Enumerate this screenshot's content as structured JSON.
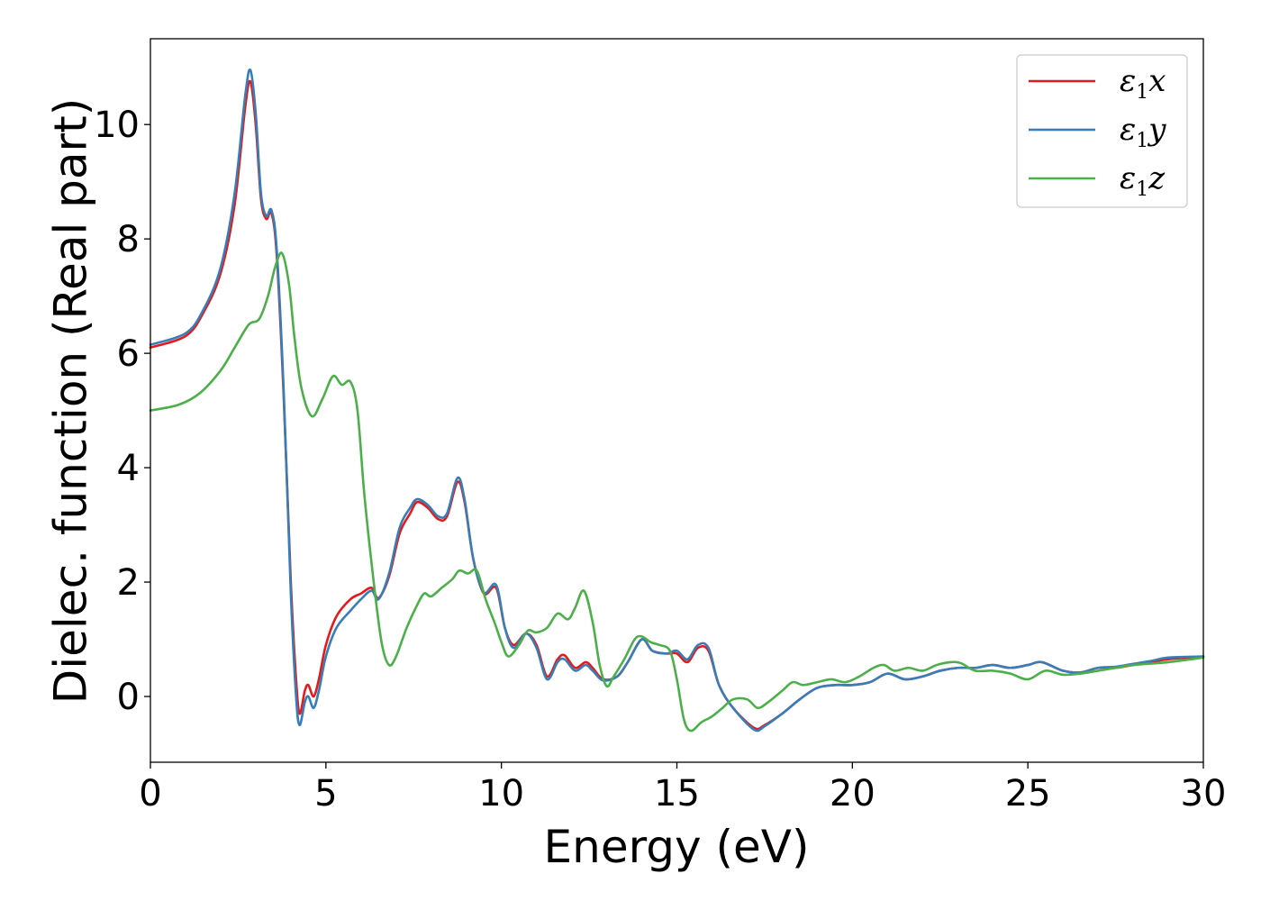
{
  "chart_data": {
    "type": "line",
    "xlabel": "Energy (eV)",
    "ylabel": "Dielec. function (Real part)",
    "xlim": [
      0,
      30
    ],
    "ylim": [
      -1.15,
      11.5
    ],
    "xticks": [
      0,
      5,
      10,
      15,
      20,
      25,
      30
    ],
    "yticks": [
      0,
      2,
      4,
      6,
      8,
      10
    ],
    "grid": false,
    "legend_position": "top-right",
    "series": [
      {
        "name": "ε1x",
        "legend": {
          "base": "ε",
          "sub": "1",
          "comp": "x"
        },
        "color": "#e41a1c",
        "points": [
          [
            0,
            6.1
          ],
          [
            1,
            6.3
          ],
          [
            1.5,
            6.7
          ],
          [
            2,
            7.4
          ],
          [
            2.4,
            8.6
          ],
          [
            2.7,
            10.3
          ],
          [
            2.85,
            10.75
          ],
          [
            3.0,
            10.0
          ],
          [
            3.15,
            8.7
          ],
          [
            3.3,
            8.35
          ],
          [
            3.45,
            8.45
          ],
          [
            3.6,
            7.7
          ],
          [
            3.8,
            5.2
          ],
          [
            4.0,
            2.0
          ],
          [
            4.15,
            0.3
          ],
          [
            4.25,
            -0.3
          ],
          [
            4.4,
            0.1
          ],
          [
            4.5,
            0.2
          ],
          [
            4.65,
            0.0
          ],
          [
            4.8,
            0.3
          ],
          [
            5.0,
            0.9
          ],
          [
            5.3,
            1.4
          ],
          [
            5.7,
            1.7
          ],
          [
            6.0,
            1.8
          ],
          [
            6.3,
            1.9
          ],
          [
            6.5,
            1.72
          ],
          [
            6.8,
            2.1
          ],
          [
            7.1,
            2.85
          ],
          [
            7.4,
            3.2
          ],
          [
            7.6,
            3.4
          ],
          [
            7.9,
            3.3
          ],
          [
            8.2,
            3.1
          ],
          [
            8.45,
            3.15
          ],
          [
            8.75,
            3.75
          ],
          [
            8.95,
            3.4
          ],
          [
            9.2,
            2.4
          ],
          [
            9.5,
            1.8
          ],
          [
            9.85,
            1.9
          ],
          [
            10.1,
            1.2
          ],
          [
            10.35,
            0.9
          ],
          [
            10.7,
            1.1
          ],
          [
            11.0,
            0.9
          ],
          [
            11.3,
            0.35
          ],
          [
            11.6,
            0.65
          ],
          [
            11.8,
            0.72
          ],
          [
            12.1,
            0.5
          ],
          [
            12.4,
            0.6
          ],
          [
            12.6,
            0.5
          ],
          [
            12.9,
            0.3
          ],
          [
            13.3,
            0.35
          ],
          [
            13.6,
            0.6
          ],
          [
            14.0,
            1.0
          ],
          [
            14.3,
            0.8
          ],
          [
            14.7,
            0.75
          ],
          [
            15.0,
            0.75
          ],
          [
            15.3,
            0.6
          ],
          [
            15.6,
            0.85
          ],
          [
            15.9,
            0.8
          ],
          [
            16.2,
            0.2
          ],
          [
            16.6,
            -0.2
          ],
          [
            17.2,
            -0.55
          ],
          [
            17.5,
            -0.5
          ],
          [
            18.0,
            -0.3
          ],
          [
            18.5,
            -0.05
          ],
          [
            19.0,
            0.15
          ],
          [
            19.5,
            0.2
          ],
          [
            20.0,
            0.2
          ],
          [
            20.5,
            0.25
          ],
          [
            21.0,
            0.4
          ],
          [
            21.5,
            0.3
          ],
          [
            22.0,
            0.35
          ],
          [
            22.5,
            0.45
          ],
          [
            23.0,
            0.5
          ],
          [
            23.5,
            0.5
          ],
          [
            24.0,
            0.55
          ],
          [
            24.5,
            0.5
          ],
          [
            25.0,
            0.55
          ],
          [
            25.4,
            0.6
          ],
          [
            26.0,
            0.45
          ],
          [
            26.5,
            0.42
          ],
          [
            27.0,
            0.5
          ],
          [
            27.5,
            0.5
          ],
          [
            28.0,
            0.55
          ],
          [
            28.5,
            0.6
          ],
          [
            29.0,
            0.65
          ],
          [
            30.0,
            0.7
          ]
        ]
      },
      {
        "name": "ε1y",
        "legend": {
          "base": "ε",
          "sub": "1",
          "comp": "y"
        },
        "color": "#377eb8",
        "points": [
          [
            0,
            6.15
          ],
          [
            1,
            6.35
          ],
          [
            1.5,
            6.75
          ],
          [
            2,
            7.5
          ],
          [
            2.4,
            8.8
          ],
          [
            2.7,
            10.5
          ],
          [
            2.85,
            10.95
          ],
          [
            3.0,
            10.2
          ],
          [
            3.15,
            8.8
          ],
          [
            3.3,
            8.4
          ],
          [
            3.45,
            8.5
          ],
          [
            3.6,
            7.8
          ],
          [
            3.8,
            5.3
          ],
          [
            4.0,
            1.8
          ],
          [
            4.15,
            0.0
          ],
          [
            4.25,
            -0.5
          ],
          [
            4.4,
            -0.1
          ],
          [
            4.5,
            0.0
          ],
          [
            4.65,
            -0.2
          ],
          [
            4.8,
            0.1
          ],
          [
            5.0,
            0.7
          ],
          [
            5.3,
            1.2
          ],
          [
            5.7,
            1.5
          ],
          [
            6.0,
            1.7
          ],
          [
            6.3,
            1.85
          ],
          [
            6.5,
            1.7
          ],
          [
            6.8,
            2.15
          ],
          [
            7.1,
            2.95
          ],
          [
            7.4,
            3.3
          ],
          [
            7.6,
            3.45
          ],
          [
            7.9,
            3.35
          ],
          [
            8.2,
            3.15
          ],
          [
            8.45,
            3.2
          ],
          [
            8.75,
            3.82
          ],
          [
            8.95,
            3.45
          ],
          [
            9.2,
            2.4
          ],
          [
            9.5,
            1.82
          ],
          [
            9.85,
            1.95
          ],
          [
            10.1,
            1.2
          ],
          [
            10.35,
            0.85
          ],
          [
            10.7,
            1.1
          ],
          [
            11.0,
            0.85
          ],
          [
            11.3,
            0.3
          ],
          [
            11.6,
            0.6
          ],
          [
            11.8,
            0.65
          ],
          [
            12.1,
            0.45
          ],
          [
            12.4,
            0.55
          ],
          [
            12.6,
            0.45
          ],
          [
            12.9,
            0.28
          ],
          [
            13.3,
            0.35
          ],
          [
            13.6,
            0.6
          ],
          [
            14.0,
            1.0
          ],
          [
            14.3,
            0.8
          ],
          [
            14.7,
            0.75
          ],
          [
            15.0,
            0.8
          ],
          [
            15.3,
            0.65
          ],
          [
            15.6,
            0.9
          ],
          [
            15.9,
            0.85
          ],
          [
            16.2,
            0.2
          ],
          [
            16.6,
            -0.2
          ],
          [
            17.2,
            -0.58
          ],
          [
            17.5,
            -0.52
          ],
          [
            18.0,
            -0.3
          ],
          [
            18.5,
            -0.05
          ],
          [
            19.0,
            0.15
          ],
          [
            19.5,
            0.2
          ],
          [
            20.0,
            0.2
          ],
          [
            20.5,
            0.25
          ],
          [
            21.0,
            0.4
          ],
          [
            21.5,
            0.3
          ],
          [
            22.0,
            0.35
          ],
          [
            22.5,
            0.45
          ],
          [
            23.0,
            0.5
          ],
          [
            23.5,
            0.5
          ],
          [
            24.0,
            0.55
          ],
          [
            24.5,
            0.5
          ],
          [
            25.0,
            0.55
          ],
          [
            25.4,
            0.6
          ],
          [
            26.0,
            0.45
          ],
          [
            26.5,
            0.42
          ],
          [
            27.0,
            0.5
          ],
          [
            27.5,
            0.52
          ],
          [
            28.0,
            0.57
          ],
          [
            28.5,
            0.62
          ],
          [
            29.0,
            0.68
          ],
          [
            30.0,
            0.7
          ]
        ]
      },
      {
        "name": "ε1z",
        "legend": {
          "base": "ε",
          "sub": "1",
          "comp": "z"
        },
        "color": "#4daf4a",
        "points": [
          [
            0,
            5.0
          ],
          [
            0.8,
            5.1
          ],
          [
            1.4,
            5.3
          ],
          [
            2.0,
            5.7
          ],
          [
            2.4,
            6.1
          ],
          [
            2.8,
            6.5
          ],
          [
            3.1,
            6.6
          ],
          [
            3.35,
            7.0
          ],
          [
            3.55,
            7.5
          ],
          [
            3.75,
            7.75
          ],
          [
            3.95,
            7.2
          ],
          [
            4.1,
            6.3
          ],
          [
            4.3,
            5.4
          ],
          [
            4.6,
            4.9
          ],
          [
            4.9,
            5.2
          ],
          [
            5.2,
            5.6
          ],
          [
            5.45,
            5.45
          ],
          [
            5.7,
            5.5
          ],
          [
            5.9,
            5.0
          ],
          [
            6.1,
            3.5
          ],
          [
            6.4,
            1.8
          ],
          [
            6.6,
            0.9
          ],
          [
            6.8,
            0.55
          ],
          [
            7.0,
            0.7
          ],
          [
            7.3,
            1.2
          ],
          [
            7.6,
            1.6
          ],
          [
            7.8,
            1.8
          ],
          [
            8.0,
            1.75
          ],
          [
            8.3,
            1.9
          ],
          [
            8.6,
            2.05
          ],
          [
            8.8,
            2.2
          ],
          [
            9.05,
            2.15
          ],
          [
            9.3,
            2.2
          ],
          [
            9.55,
            1.7
          ],
          [
            9.8,
            1.3
          ],
          [
            10.0,
            0.95
          ],
          [
            10.2,
            0.7
          ],
          [
            10.5,
            0.9
          ],
          [
            10.75,
            1.15
          ],
          [
            11.0,
            1.12
          ],
          [
            11.3,
            1.2
          ],
          [
            11.6,
            1.45
          ],
          [
            11.9,
            1.35
          ],
          [
            12.1,
            1.55
          ],
          [
            12.35,
            1.85
          ],
          [
            12.6,
            1.3
          ],
          [
            12.8,
            0.55
          ],
          [
            13.0,
            0.18
          ],
          [
            13.2,
            0.35
          ],
          [
            13.5,
            0.65
          ],
          [
            13.8,
            1.0
          ],
          [
            14.0,
            1.05
          ],
          [
            14.25,
            0.95
          ],
          [
            14.5,
            0.9
          ],
          [
            14.8,
            0.8
          ],
          [
            15.0,
            0.3
          ],
          [
            15.2,
            -0.4
          ],
          [
            15.4,
            -0.6
          ],
          [
            15.7,
            -0.45
          ],
          [
            16.0,
            -0.35
          ],
          [
            16.3,
            -0.2
          ],
          [
            16.6,
            -0.05
          ],
          [
            17.0,
            -0.05
          ],
          [
            17.3,
            -0.2
          ],
          [
            17.6,
            -0.1
          ],
          [
            18.0,
            0.1
          ],
          [
            18.3,
            0.25
          ],
          [
            18.6,
            0.2
          ],
          [
            19.0,
            0.25
          ],
          [
            19.4,
            0.3
          ],
          [
            19.8,
            0.25
          ],
          [
            20.2,
            0.35
          ],
          [
            20.6,
            0.5
          ],
          [
            20.9,
            0.55
          ],
          [
            21.2,
            0.45
          ],
          [
            21.6,
            0.5
          ],
          [
            22.0,
            0.45
          ],
          [
            22.4,
            0.55
          ],
          [
            22.8,
            0.6
          ],
          [
            23.1,
            0.58
          ],
          [
            23.5,
            0.45
          ],
          [
            24.0,
            0.45
          ],
          [
            24.5,
            0.4
          ],
          [
            25.0,
            0.3
          ],
          [
            25.5,
            0.45
          ],
          [
            26.0,
            0.38
          ],
          [
            26.5,
            0.4
          ],
          [
            27.0,
            0.45
          ],
          [
            27.5,
            0.5
          ],
          [
            28.0,
            0.55
          ],
          [
            29.0,
            0.6
          ],
          [
            30.0,
            0.68
          ]
        ]
      }
    ]
  }
}
